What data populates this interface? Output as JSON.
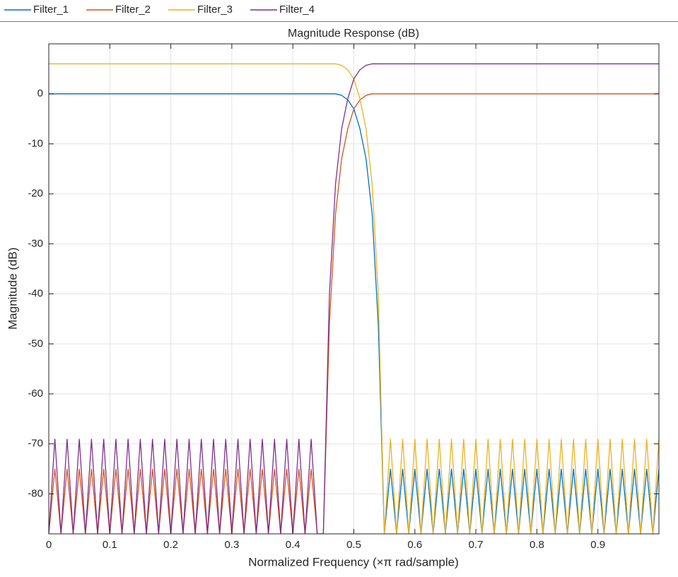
{
  "chart_data": {
    "type": "line",
    "title": "Magnitude Response (dB)",
    "x_label": "Normalized Frequency (×π rad/sample)",
    "y_label": "Magnitude (dB)",
    "xlim": [
      0,
      1
    ],
    "ylim": [
      -88,
      10
    ],
    "xticks": [
      0,
      0.1,
      0.2,
      0.3,
      0.4,
      0.5,
      0.6,
      0.7,
      0.8,
      0.9
    ],
    "yticks": [
      0,
      -10,
      -20,
      -30,
      -40,
      -50,
      -60,
      -70,
      -80
    ],
    "grid": true,
    "x": [
      0,
      0.01,
      0.02,
      0.03,
      0.04,
      0.05,
      0.06,
      0.07,
      0.08,
      0.09,
      0.1,
      0.11,
      0.12,
      0.13,
      0.14,
      0.15,
      0.16,
      0.17,
      0.18,
      0.19,
      0.2,
      0.21,
      0.22,
      0.23,
      0.24,
      0.25,
      0.26,
      0.27,
      0.28,
      0.29,
      0.3,
      0.31,
      0.32,
      0.33,
      0.34,
      0.35,
      0.36,
      0.37,
      0.38,
      0.39,
      0.4,
      0.41,
      0.42,
      0.43,
      0.44,
      0.45,
      0.46,
      0.47,
      0.48,
      0.49,
      0.5,
      0.51,
      0.52,
      0.53,
      0.54,
      0.55,
      0.56,
      0.57,
      0.58,
      0.59,
      0.6,
      0.61,
      0.62,
      0.63,
      0.64,
      0.65,
      0.66,
      0.67,
      0.68,
      0.69,
      0.7,
      0.71,
      0.72,
      0.73,
      0.74,
      0.75,
      0.76,
      0.77,
      0.78,
      0.79,
      0.8,
      0.81,
      0.82,
      0.83,
      0.84,
      0.85,
      0.86,
      0.87,
      0.88,
      0.89,
      0.9,
      0.91,
      0.92,
      0.93,
      0.94,
      0.95,
      0.96,
      0.97,
      0.98,
      0.99,
      1
    ],
    "series": [
      {
        "name": "Filter_1",
        "color": "#0072bd",
        "values": [
          0,
          0,
          0,
          0,
          0,
          0,
          0,
          0,
          0,
          0,
          0,
          0,
          0,
          0,
          0,
          0,
          0,
          0,
          0,
          0,
          0,
          0,
          0,
          0,
          0,
          0,
          0,
          0,
          0,
          0,
          0,
          0,
          0,
          0,
          0,
          0,
          0,
          0,
          0,
          0,
          0,
          0,
          0,
          0,
          0,
          0,
          0,
          0,
          -0.3,
          -1.2,
          -3,
          -7,
          -13,
          -24,
          -46,
          -88,
          -75,
          -88,
          -75,
          -88,
          -75,
          -88,
          -75,
          -88,
          -75,
          -88,
          -75,
          -88,
          -75,
          -88,
          -75,
          -88,
          -75,
          -88,
          -75,
          -88,
          -75,
          -88,
          -75,
          -88,
          -75,
          -88,
          -75,
          -88,
          -75,
          -88,
          -75,
          -88,
          -75,
          -88,
          -75,
          -88,
          -75,
          -88,
          -75,
          -88,
          -75,
          -88,
          -75,
          -88,
          -75
        ]
      },
      {
        "name": "Filter_2",
        "color": "#d95319",
        "values": [
          -88,
          -75,
          -88,
          -75,
          -88,
          -75,
          -88,
          -75,
          -88,
          -75,
          -88,
          -75,
          -88,
          -75,
          -88,
          -75,
          -88,
          -75,
          -88,
          -75,
          -88,
          -75,
          -88,
          -75,
          -88,
          -75,
          -88,
          -75,
          -88,
          -75,
          -88,
          -75,
          -88,
          -75,
          -88,
          -75,
          -88,
          -75,
          -88,
          -75,
          -88,
          -75,
          -88,
          -75,
          -88,
          -88,
          -46,
          -24,
          -13,
          -7,
          -3,
          -1.2,
          -0.3,
          0,
          0,
          0,
          0,
          0,
          0,
          0,
          0,
          0,
          0,
          0,
          0,
          0,
          0,
          0,
          0,
          0,
          0,
          0,
          0,
          0,
          0,
          0,
          0,
          0,
          0,
          0,
          0,
          0,
          0,
          0,
          0,
          0,
          0,
          0,
          0,
          0,
          0,
          0,
          0,
          0,
          0,
          0,
          0,
          0,
          0,
          0,
          0
        ]
      },
      {
        "name": "Filter_3",
        "color": "#edb120",
        "values": [
          6,
          6,
          6,
          6,
          6,
          6,
          6,
          6,
          6,
          6,
          6,
          6,
          6,
          6,
          6,
          6,
          6,
          6,
          6,
          6,
          6,
          6,
          6,
          6,
          6,
          6,
          6,
          6,
          6,
          6,
          6,
          6,
          6,
          6,
          6,
          6,
          6,
          6,
          6,
          6,
          6,
          6,
          6,
          6,
          6,
          6,
          6,
          6,
          5.7,
          4.8,
          3,
          -1,
          -7,
          -18,
          -40,
          -88,
          -69,
          -88,
          -69,
          -88,
          -69,
          -88,
          -69,
          -88,
          -69,
          -88,
          -69,
          -88,
          -69,
          -88,
          -69,
          -88,
          -69,
          -88,
          -69,
          -88,
          -69,
          -88,
          -69,
          -88,
          -69,
          -88,
          -69,
          -88,
          -69,
          -88,
          -69,
          -88,
          -69,
          -88,
          -69,
          -88,
          -69,
          -88,
          -69,
          -88,
          -69,
          -88,
          -69,
          -88,
          -69
        ]
      },
      {
        "name": "Filter_4",
        "color": "#7e2f8e",
        "values": [
          -88,
          -69,
          -88,
          -69,
          -88,
          -69,
          -88,
          -69,
          -88,
          -69,
          -88,
          -69,
          -88,
          -69,
          -88,
          -69,
          -88,
          -69,
          -88,
          -69,
          -88,
          -69,
          -88,
          -69,
          -88,
          -69,
          -88,
          -69,
          -88,
          -69,
          -88,
          -69,
          -88,
          -69,
          -88,
          -69,
          -88,
          -69,
          -88,
          -69,
          -88,
          -69,
          -88,
          -69,
          -88,
          -88,
          -40,
          -18,
          -7,
          -1,
          3,
          4.8,
          5.7,
          6,
          6,
          6,
          6,
          6,
          6,
          6,
          6,
          6,
          6,
          6,
          6,
          6,
          6,
          6,
          6,
          6,
          6,
          6,
          6,
          6,
          6,
          6,
          6,
          6,
          6,
          6,
          6,
          6,
          6,
          6,
          6,
          6,
          6,
          6,
          6,
          6,
          6,
          6,
          6,
          6,
          6,
          6,
          6,
          6,
          6,
          6,
          6
        ]
      }
    ]
  }
}
